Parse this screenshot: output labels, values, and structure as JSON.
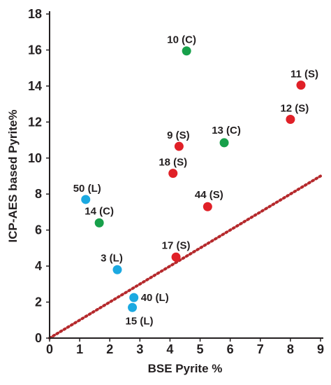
{
  "chart_data": {
    "type": "scatter",
    "xlabel": "BSE Pyrite %",
    "ylabel": "ICP-AES based Pyrite%",
    "xlim": [
      0,
      9
    ],
    "ylim": [
      0,
      18
    ],
    "xticks": [
      "0",
      "1",
      "2",
      "3",
      "4",
      "5",
      "6",
      "7",
      "8",
      "9"
    ],
    "yticks": [
      "0",
      "2",
      "4",
      "6",
      "8",
      "10",
      "12",
      "14",
      "16",
      "18"
    ],
    "grid": false,
    "colors": {
      "L": "#1ba9e1",
      "C": "#17a04a",
      "S": "#e02027",
      "trend": "#b5292c"
    },
    "trend_line": {
      "style": "dotted",
      "x": [
        0,
        9
      ],
      "y": [
        0,
        9
      ]
    },
    "points": [
      {
        "label": "10 (C)",
        "x": 4.55,
        "y": 15.95,
        "group": "C"
      },
      {
        "label": "11 (S)",
        "x": 8.35,
        "y": 14.05,
        "group": "S"
      },
      {
        "label": "12 (S)",
        "x": 8.0,
        "y": 12.15,
        "group": "S"
      },
      {
        "label": "13 (C)",
        "x": 5.8,
        "y": 10.85,
        "group": "C"
      },
      {
        "label": "9 (S)",
        "x": 4.3,
        "y": 10.65,
        "group": "S"
      },
      {
        "label": "18 (S)",
        "x": 4.1,
        "y": 9.15,
        "group": "S"
      },
      {
        "label": "50 (L)",
        "x": 1.2,
        "y": 7.7,
        "group": "L"
      },
      {
        "label": "44 (S)",
        "x": 5.25,
        "y": 7.3,
        "group": "S"
      },
      {
        "label": "14 (C)",
        "x": 1.65,
        "y": 6.4,
        "group": "C"
      },
      {
        "label": "17 (S)",
        "x": 4.2,
        "y": 4.5,
        "group": "S"
      },
      {
        "label": "3 (L)",
        "x": 2.25,
        "y": 3.8,
        "group": "L"
      },
      {
        "label": "40 (L)",
        "x": 2.8,
        "y": 2.25,
        "group": "L"
      },
      {
        "label": "15 (L)",
        "x": 2.75,
        "y": 1.7,
        "group": "L"
      }
    ]
  }
}
